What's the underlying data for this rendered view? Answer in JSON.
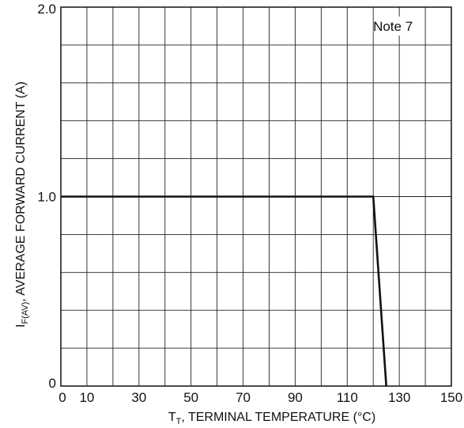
{
  "chart_data": {
    "type": "line",
    "xlabel_main": "T",
    "xlabel_sub": "T",
    "xlabel_rest": ", TERMINAL TEMPERATURE (°C)",
    "ylabel_main": "I",
    "ylabel_sub": "F(AV)",
    "ylabel_rest": ", AVERAGE FORWARD CURRENT (A)",
    "xlim": [
      0,
      150
    ],
    "ylim": [
      0,
      2.0
    ],
    "x_ticks": [
      0,
      10,
      30,
      50,
      70,
      90,
      110,
      130,
      150
    ],
    "x_tick_labels": [
      "0",
      "10",
      "30",
      "50",
      "70",
      "90",
      "110",
      "130",
      "150"
    ],
    "y_ticks": [
      0,
      1.0,
      2.0
    ],
    "y_tick_labels": [
      "0",
      "1.0",
      "2.0"
    ],
    "x_gridlines": [
      10,
      20,
      30,
      40,
      50,
      60,
      70,
      80,
      90,
      100,
      110,
      120,
      130,
      140
    ],
    "y_gridlines": [
      0.2,
      0.4,
      0.6,
      0.8,
      1.0,
      1.2,
      1.4,
      1.6,
      1.8
    ],
    "grid": true,
    "annotation": "Note 7",
    "annotation_position": "top-right",
    "series": [
      {
        "x": [
          0,
          120,
          125
        ],
        "y": [
          1.0,
          1.0,
          0
        ]
      }
    ]
  }
}
